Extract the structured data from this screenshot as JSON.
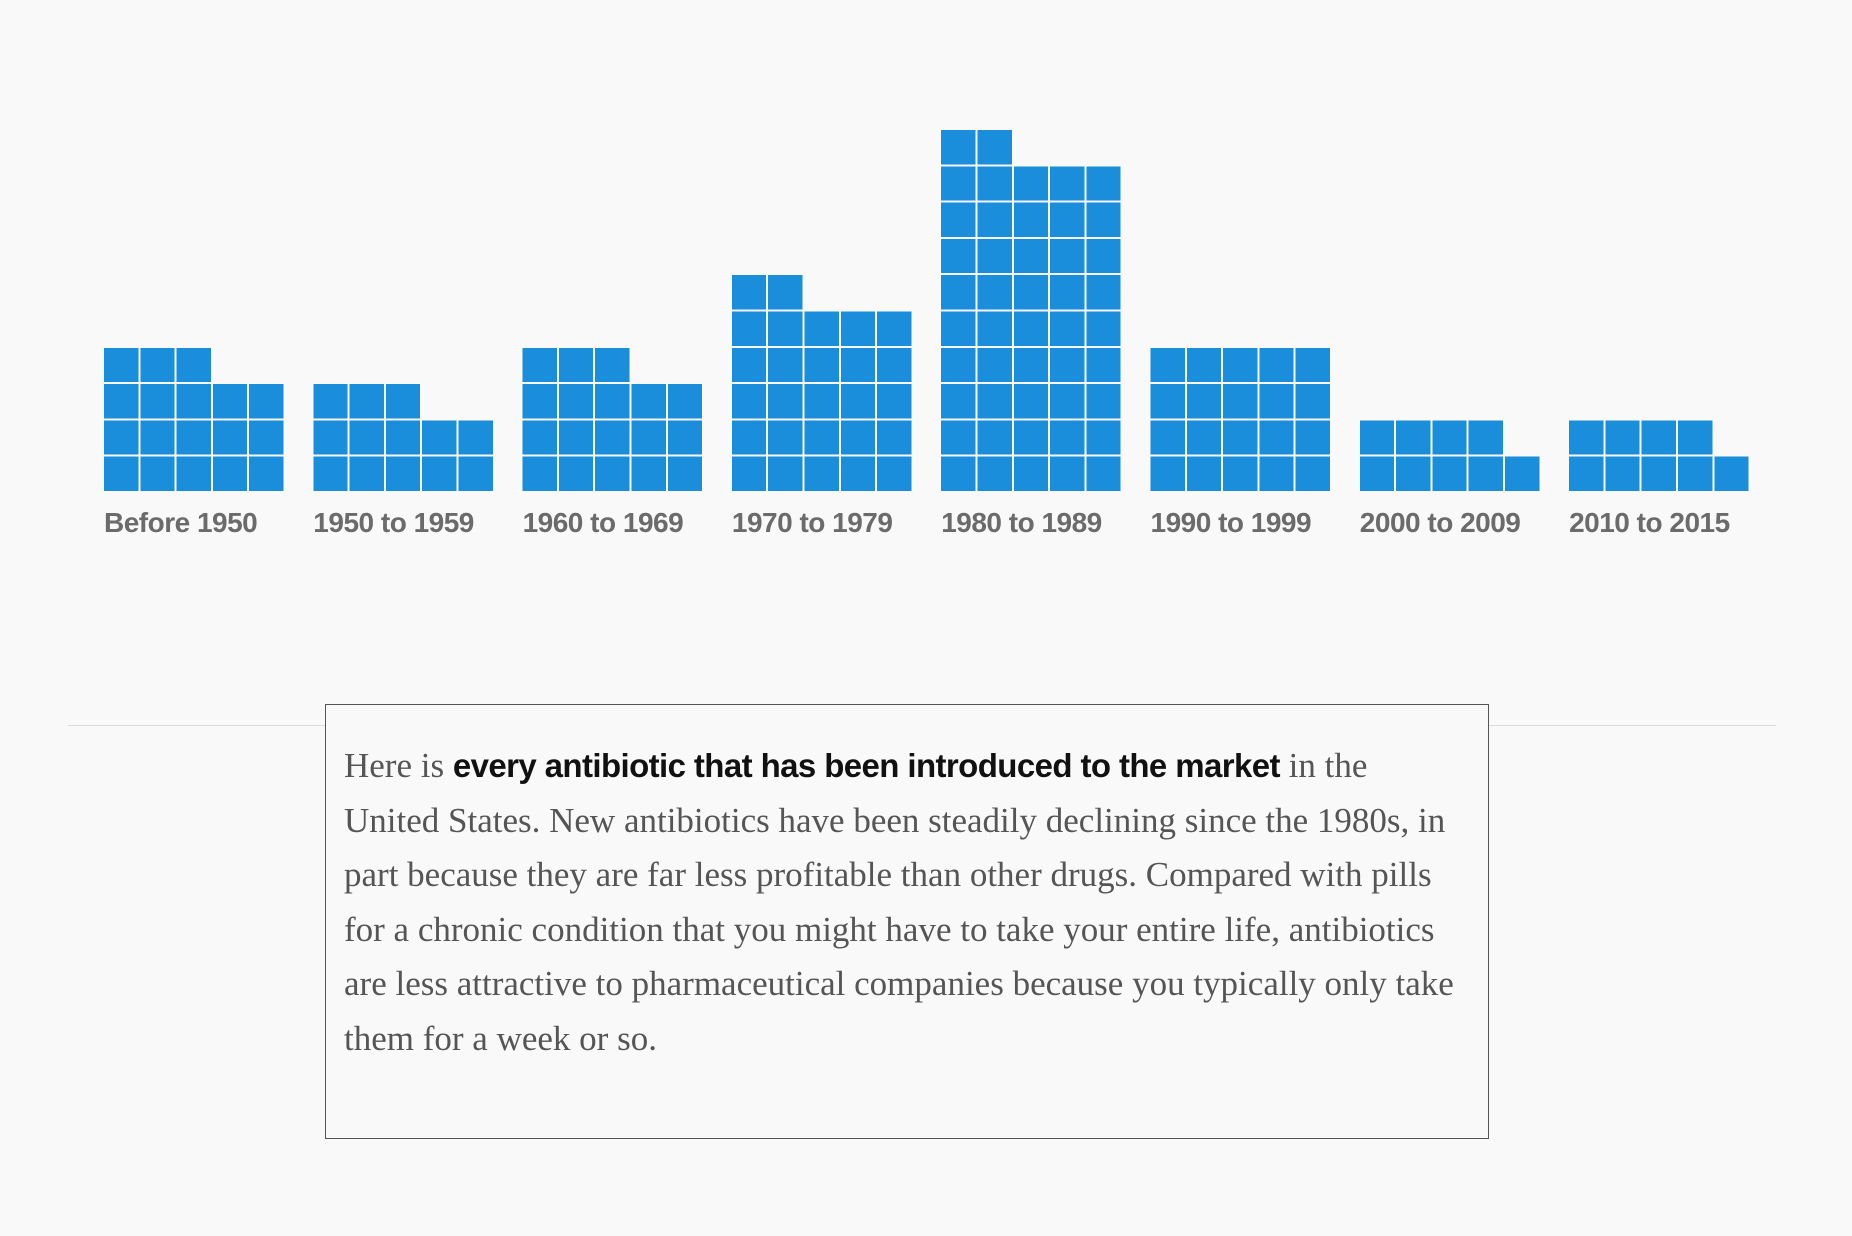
{
  "colors": {
    "cell": "#1a8ddb",
    "cell_gap": "#f9f9f9",
    "label": "#6b6b6b",
    "caption_text": "#555555",
    "caption_emphasis": "#111111",
    "box_border": "#555555",
    "divider": "#dcdcdc"
  },
  "chart_data": {
    "type": "bar",
    "categories": [
      "Before 1950",
      "1950 to 1959",
      "1960 to 1969",
      "1970 to 1979",
      "1980 to 1989",
      "1990 to 1999",
      "2000 to 2009",
      "2010 to 2015"
    ],
    "values": [
      18,
      13,
      18,
      27,
      47,
      20,
      9,
      9
    ],
    "unit_per_square": 1,
    "squares_per_row": 5,
    "grid": false,
    "legend": "none"
  },
  "caption": {
    "text_before": "Here is ",
    "emphasis": "every antibiotic that has been introduced to the market",
    "text_after": " in the United States. New antibiotics have been steadily declining since the 1980s, in part because they are far less profitable than other drugs. Compared with pills for a chronic condition that you might have to take your entire life, antibiotics are less attractive to pharmaceutical companies because you typically only take them for a week or so."
  }
}
